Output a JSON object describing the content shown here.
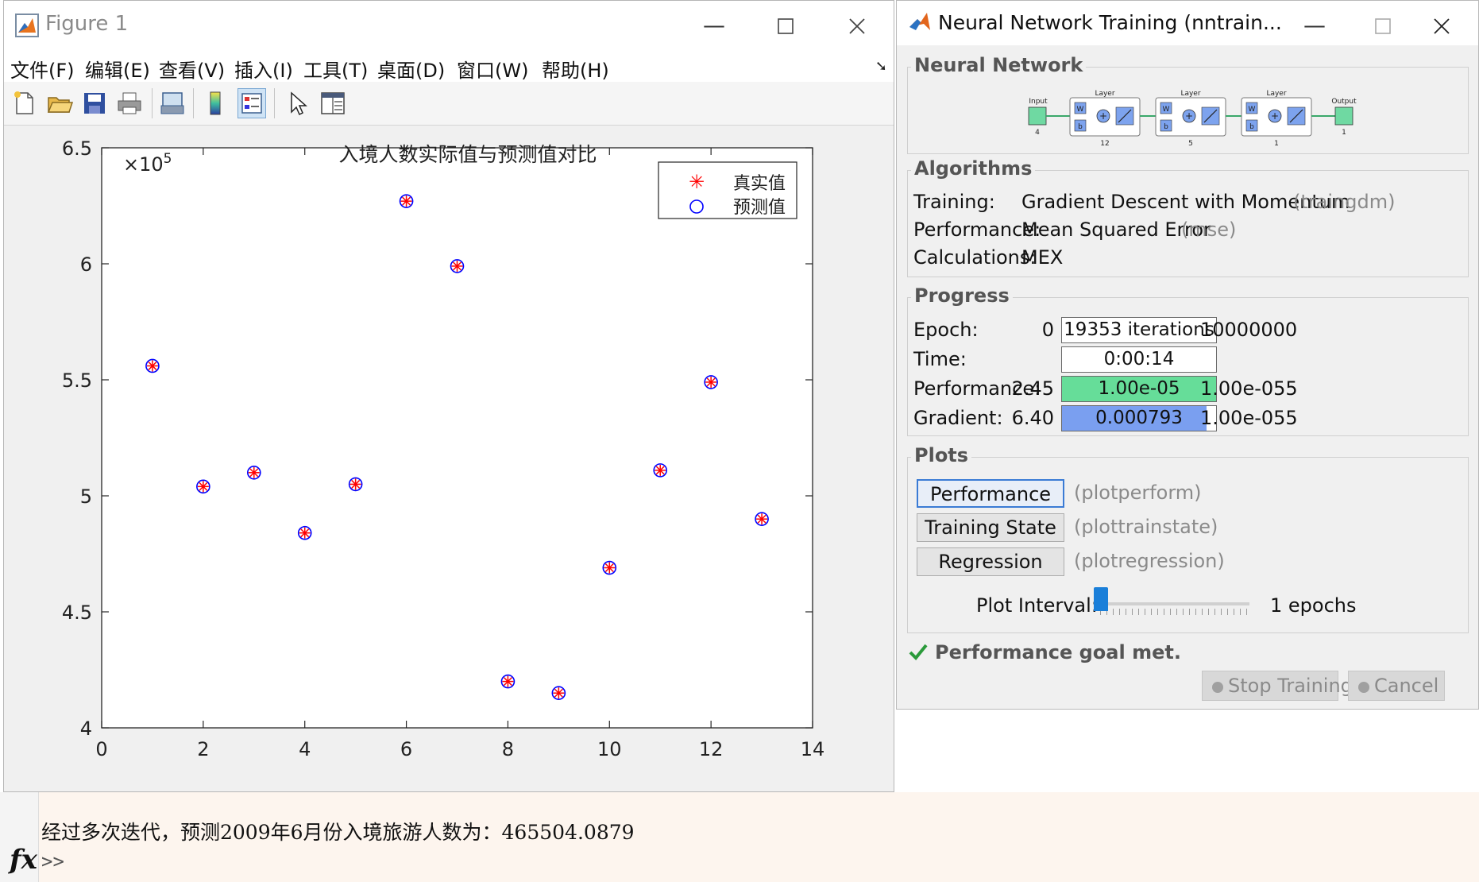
{
  "command_window": {
    "output_line": "经过多次迭代，预测2009年6月份入境旅游人数为：465504.0879",
    "fx_label": "fx",
    "prompt": ">>"
  },
  "figure": {
    "window_title": "Figure 1",
    "menu": [
      "文件(F)",
      "编辑(E)",
      "查看(V)",
      "插入(I)",
      "工具(T)",
      "桌面(D)",
      "窗口(W)",
      "帮助(H)"
    ],
    "toolbar_icons": [
      "new-figure-icon",
      "open-file-icon",
      "save-icon",
      "print-icon",
      "print-preview-icon",
      "colorbar-icon",
      "legend-icon",
      "pointer-icon",
      "property-editor-icon"
    ]
  },
  "chart_data": {
    "type": "scatter",
    "title": "入境人数实际值与预测值对比",
    "xlabel": "",
    "ylabel": "",
    "xlim": [
      0,
      14
    ],
    "ylim": [
      4,
      6.5
    ],
    "y_multiplier": "×10",
    "y_exponent": "5",
    "x_ticks": [
      "0",
      "2",
      "4",
      "6",
      "8",
      "10",
      "12",
      "14"
    ],
    "y_ticks": [
      "4",
      "4.5",
      "5",
      "5.5",
      "6",
      "6.5"
    ],
    "legend_position": "top-right",
    "grid": false,
    "series": [
      {
        "name": "真实值",
        "marker": "asterisk",
        "color": "#ff0000",
        "x": [
          1,
          2,
          3,
          4,
          5,
          6,
          7,
          8,
          9,
          10,
          11,
          12,
          13
        ],
        "y": [
          5.56,
          5.04,
          5.1,
          4.84,
          5.05,
          6.27,
          5.99,
          4.2,
          4.15,
          4.69,
          5.11,
          5.49,
          4.9
        ]
      },
      {
        "name": "预测值",
        "marker": "circle",
        "color": "#0000ff",
        "x": [
          1,
          2,
          3,
          4,
          5,
          6,
          7,
          8,
          9,
          10,
          11,
          12,
          13
        ],
        "y": [
          5.56,
          5.04,
          5.1,
          4.84,
          5.05,
          6.27,
          5.99,
          4.2,
          4.15,
          4.69,
          5.11,
          5.49,
          4.9
        ]
      }
    ]
  },
  "nntraintool": {
    "window_title": "Neural Network Training (nntrain...",
    "network": {
      "title": "Neural Network",
      "input_label": "Input",
      "input_size": "4",
      "layer_label": "Layer",
      "w_label": "W",
      "b_label": "b",
      "layer_sizes": [
        "12",
        "5",
        "1"
      ],
      "output_label": "Output",
      "output_size": "1"
    },
    "algorithms": {
      "title": "Algorithms",
      "training_label": "Training:",
      "training_value": "Gradient Descent with Momentum",
      "training_fn": "(traingdm)",
      "performance_label": "Performance:",
      "performance_value": "Mean Squared Error",
      "performance_fn": "(mse)",
      "calculations_label": "Calculations:",
      "calculations_value": "MEX"
    },
    "progress": {
      "title": "Progress",
      "epoch": {
        "label": "Epoch:",
        "start": "0",
        "current": "19353 iterations",
        "end": "10000000",
        "fill": 0.002,
        "color": "#ffffff"
      },
      "time": {
        "label": "Time:",
        "start": "",
        "current": "0:00:14",
        "end": "",
        "fill": 0,
        "color": "#ffffff"
      },
      "performance": {
        "label": "Performance:",
        "start": "2.45",
        "current": "1.00e-05",
        "end": "1.00e-055",
        "fill": 1.0,
        "color": "#66dd99"
      },
      "gradient": {
        "label": "Gradient:",
        "start": "6.40",
        "current": "0.000793",
        "end": "1.00e-055",
        "fill": 0.94,
        "color": "#7a9ff0"
      }
    },
    "plots": {
      "title": "Plots",
      "buttons": [
        {
          "label": "Performance",
          "fn": "(plotperform)"
        },
        {
          "label": "Training State",
          "fn": "(plottrainstate)"
        },
        {
          "label": "Regression",
          "fn": "(plotregression)"
        }
      ],
      "interval_label": "Plot Interval:",
      "interval_value": "1 epochs",
      "interval_fill": 0.0
    },
    "status": "Performance goal met.",
    "stop_label": "Stop Training",
    "cancel_label": "Cancel"
  }
}
